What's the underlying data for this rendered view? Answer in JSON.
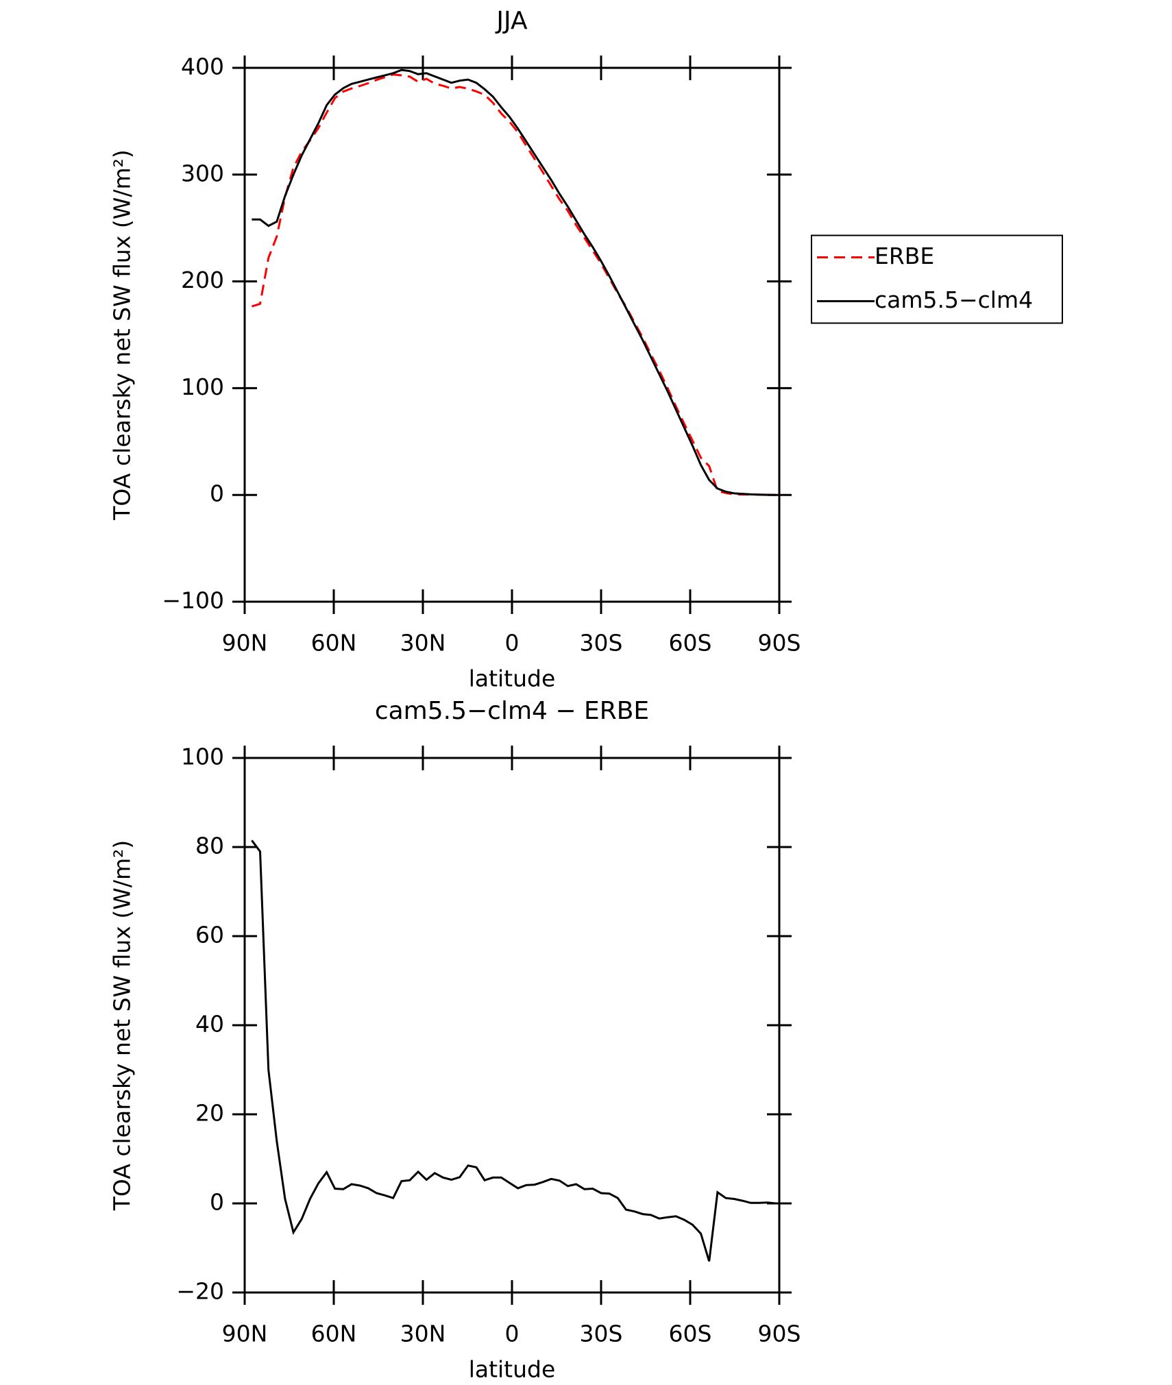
{
  "chart_data": [
    {
      "type": "line",
      "title": "JJA",
      "xlabel": "latitude",
      "ylabel": "TOA clearsky net SW flux (W/m²)",
      "x": [
        87.6,
        84.8,
        82,
        79.2,
        76.4,
        73.6,
        70.8,
        68,
        65.2,
        62.4,
        59.6,
        56.8,
        54,
        51.2,
        48.4,
        45.6,
        42.8,
        40,
        37.2,
        34.4,
        31.6,
        28.8,
        26,
        23.2,
        20.4,
        17.6,
        14.8,
        12,
        9.2,
        6.4,
        3.6,
        0.8,
        -2,
        -4.8,
        -7.6,
        -10.4,
        -13.2,
        -16,
        -18.8,
        -21.6,
        -24.4,
        -27.2,
        -30,
        -32.8,
        -35.6,
        -38.4,
        -41.2,
        -44,
        -46.8,
        -49.6,
        -52.4,
        -55.2,
        -58,
        -60.8,
        -63.6,
        -66.4,
        -69.2,
        -72,
        -74.8,
        -77.6,
        -80.4,
        -83.2,
        -86,
        -88.8
      ],
      "series": [
        {
          "name": "ERBE",
          "color": "#ff0000",
          "linestyle": "dashed",
          "values": [
            176.5,
            179,
            222,
            242,
            279,
            306.5,
            321.5,
            332,
            343.5,
            358,
            371.7,
            377.8,
            380.7,
            383,
            385.6,
            388.7,
            391.2,
            393.8,
            393,
            391.8,
            386.9,
            389.7,
            385.2,
            383.2,
            380.7,
            382.1,
            380.5,
            377.9,
            374.8,
            367.2,
            357.2,
            349.4,
            339.6,
            326.9,
            314.8,
            302.2,
            289.5,
            276.9,
            266.1,
            252.7,
            240.8,
            228.7,
            216.7,
            202.8,
            188.8,
            176.4,
            161.8,
            147.4,
            131.6,
            116.4,
            100.1,
            82.9,
            66.7,
            50.8,
            34.8,
            27,
            3.5,
            1.8,
            0.5,
            0.4,
            0.4,
            0.2,
            0,
            0
          ]
        },
        {
          "name": "cam5.5−clm4",
          "color": "#000000",
          "linestyle": "solid",
          "values": [
            258,
            258,
            252,
            256,
            280,
            300,
            318,
            333,
            348,
            365,
            375,
            381,
            385,
            387,
            389,
            391,
            393,
            395,
            398,
            397,
            394,
            395,
            392,
            389,
            386,
            388,
            389,
            386,
            380,
            373,
            363,
            354,
            343,
            331,
            319,
            307,
            295,
            282,
            270,
            257,
            244,
            232,
            219,
            205,
            190,
            175,
            160,
            145,
            129,
            113,
            97,
            80,
            63,
            46,
            28,
            14,
            6,
            3,
            1.5,
            1,
            0.5,
            0.3,
            0.1,
            0
          ]
        }
      ],
      "xlim": [
        90,
        -90
      ],
      "xticks": [
        {
          "value": 90,
          "label": "90N"
        },
        {
          "value": 60,
          "label": "60N"
        },
        {
          "value": 30,
          "label": "30N"
        },
        0,
        {
          "value": -30,
          "label": "30S"
        },
        {
          "value": -60,
          "label": "60S"
        },
        {
          "value": -90,
          "label": "90S"
        }
      ],
      "ylim": [
        -100,
        400
      ],
      "yticks": [
        {
          "value": -100,
          "label": "−100"
        },
        0,
        100,
        200,
        300,
        400
      ],
      "legend": "right"
    },
    {
      "type": "line",
      "title": "cam5.5−clm4 − ERBE",
      "xlabel": "latitude",
      "ylabel": "TOA clearsky net SW flux (W/m²)",
      "x": [
        87.6,
        84.8,
        82,
        79.2,
        76.4,
        73.6,
        70.8,
        68,
        65.2,
        62.4,
        59.6,
        56.8,
        54,
        51.2,
        48.4,
        45.6,
        42.8,
        40,
        37.2,
        34.4,
        31.6,
        28.8,
        26,
        23.2,
        20.4,
        17.6,
        14.8,
        12,
        9.2,
        6.4,
        3.6,
        0.8,
        -2,
        -4.8,
        -7.6,
        -10.4,
        -13.2,
        -16,
        -18.8,
        -21.6,
        -24.4,
        -27.2,
        -30,
        -32.8,
        -35.6,
        -38.4,
        -41.2,
        -44,
        -46.8,
        -49.6,
        -52.4,
        -55.2,
        -58,
        -60.8,
        -63.6,
        -66.4,
        -69.2,
        -72,
        -74.8,
        -77.6,
        -80.4,
        -83.2,
        -86,
        -88.8
      ],
      "color": "#000000",
      "values": [
        81.5,
        79,
        30,
        14,
        1,
        -6.5,
        -3.5,
        1,
        4.5,
        7,
        3.3,
        3.2,
        4.3,
        4,
        3.4,
        2.3,
        1.8,
        1.2,
        5,
        5.2,
        7.1,
        5.3,
        6.8,
        5.8,
        5.3,
        5.9,
        8.5,
        8.1,
        5.2,
        5.8,
        5.8,
        4.6,
        3.4,
        4.1,
        4.2,
        4.8,
        5.5,
        5.1,
        3.9,
        4.3,
        3.2,
        3.3,
        2.3,
        2.2,
        1.2,
        -1.4,
        -1.8,
        -2.4,
        -2.6,
        -3.4,
        -3.1,
        -2.9,
        -3.7,
        -4.8,
        -6.8,
        -13,
        2.5,
        1.2,
        1,
        0.6,
        0.1,
        0.1,
        0.2,
        0
      ],
      "xlim": [
        90,
        -90
      ],
      "xticks": [
        {
          "value": 90,
          "label": "90N"
        },
        {
          "value": 60,
          "label": "60N"
        },
        {
          "value": 30,
          "label": "30N"
        },
        0,
        {
          "value": -30,
          "label": "30S"
        },
        {
          "value": -60,
          "label": "60S"
        },
        {
          "value": -90,
          "label": "90S"
        }
      ],
      "ylim": [
        -20,
        100
      ],
      "yticks": [
        {
          "value": -20,
          "label": "−20"
        },
        0,
        20,
        40,
        60,
        80,
        100
      ]
    }
  ]
}
